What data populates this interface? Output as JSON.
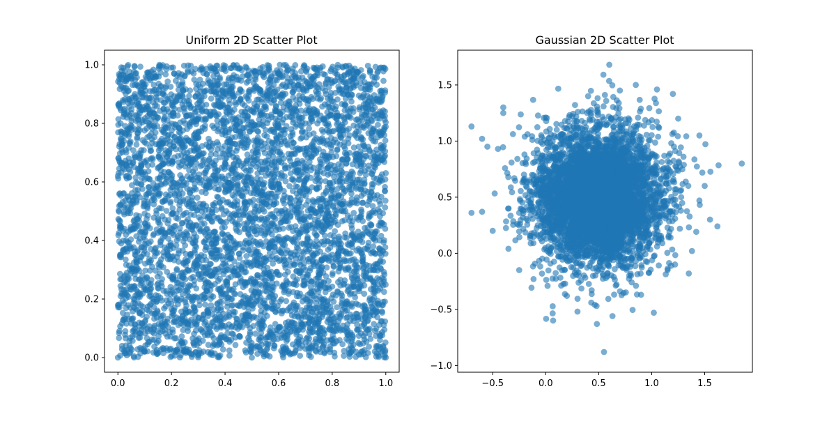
{
  "chart_data": [
    {
      "type": "scatter",
      "title": "Uniform 2D Scatter Plot",
      "xlabel": "",
      "ylabel": "",
      "xlim": [
        -0.05,
        1.05
      ],
      "ylim": [
        -0.05,
        1.05
      ],
      "xticks": [
        0.0,
        0.2,
        0.4,
        0.6,
        0.8,
        1.0
      ],
      "xtick_labels": [
        "0.0",
        "0.2",
        "0.4",
        "0.6",
        "0.8",
        "1.0"
      ],
      "yticks": [
        0.0,
        0.2,
        0.4,
        0.6,
        0.8,
        1.0
      ],
      "ytick_labels": [
        "0.0",
        "0.2",
        "0.4",
        "0.6",
        "0.8",
        "1.0"
      ],
      "grid": false,
      "legend": "none",
      "distribution": {
        "kind": "uniform",
        "x_range": [
          0.0,
          1.0
        ],
        "y_range": [
          0.0,
          1.0
        ],
        "approx_points": 5000
      },
      "point_color": "#1f77b4",
      "point_alpha": 0.6,
      "points": [
        [
          0.02,
          0.99
        ],
        [
          0.05,
          0.96
        ],
        [
          0.12,
          0.91
        ],
        [
          0.21,
          0.97
        ],
        [
          0.35,
          0.98
        ],
        [
          0.48,
          0.99
        ],
        [
          0.6,
          0.97
        ],
        [
          0.73,
          0.99
        ],
        [
          0.88,
          0.97
        ],
        [
          0.99,
          0.99
        ],
        [
          0.01,
          0.8
        ],
        [
          0.15,
          0.82
        ],
        [
          0.33,
          0.84
        ],
        [
          0.52,
          0.86
        ],
        [
          0.7,
          0.8
        ],
        [
          0.92,
          0.83
        ],
        [
          0.0,
          0.62
        ],
        [
          0.18,
          0.6
        ],
        [
          0.4,
          0.61
        ],
        [
          0.61,
          0.63
        ],
        [
          0.8,
          0.58
        ],
        [
          1.0,
          0.63
        ],
        [
          0.03,
          0.42
        ],
        [
          0.22,
          0.4
        ],
        [
          0.44,
          0.44
        ],
        [
          0.63,
          0.41
        ],
        [
          0.82,
          0.39
        ],
        [
          0.98,
          0.45
        ],
        [
          0.01,
          0.21
        ],
        [
          0.2,
          0.23
        ],
        [
          0.38,
          0.19
        ],
        [
          0.57,
          0.22
        ],
        [
          0.77,
          0.2
        ],
        [
          0.99,
          0.19
        ],
        [
          0.0,
          0.0
        ],
        [
          0.1,
          0.02
        ],
        [
          0.3,
          0.01
        ],
        [
          0.5,
          0.0
        ],
        [
          0.7,
          0.03
        ],
        [
          0.9,
          0.01
        ],
        [
          1.0,
          0.0
        ]
      ]
    },
    {
      "type": "scatter",
      "title": "Gaussian 2D Scatter Plot",
      "xlabel": "",
      "ylabel": "",
      "xlim": [
        -0.83,
        1.95
      ],
      "ylim": [
        -1.06,
        1.81
      ],
      "xticks": [
        -0.5,
        0.0,
        0.5,
        1.0,
        1.5
      ],
      "xtick_labels": [
        "−0.5",
        "0.0",
        "0.5",
        "1.0",
        "1.5"
      ],
      "yticks": [
        -1.0,
        -0.5,
        0.0,
        0.5,
        1.0,
        1.5
      ],
      "ytick_labels": [
        "−1.0",
        "−0.5",
        "0.0",
        "0.5",
        "1.0",
        "1.5"
      ],
      "grid": false,
      "legend": "none",
      "distribution": {
        "kind": "gaussian",
        "mean": [
          0.5,
          0.5
        ],
        "std": [
          0.3,
          0.3
        ],
        "approx_points": 5000
      },
      "point_color": "#1f77b4",
      "point_alpha": 0.6,
      "points": [
        [
          1.85,
          0.8
        ],
        [
          0.6,
          1.68
        ],
        [
          0.55,
          -0.88
        ],
        [
          -0.7,
          1.13
        ],
        [
          -0.7,
          0.36
        ],
        [
          1.62,
          0.24
        ],
        [
          0.07,
          -0.6
        ],
        [
          1.02,
          -0.53
        ],
        [
          0.63,
          -0.56
        ],
        [
          0.85,
          1.5
        ],
        [
          1.05,
          1.46
        ],
        [
          1.2,
          1.42
        ],
        [
          1.45,
          1.05
        ],
        [
          -0.4,
          1.3
        ],
        [
          -0.4,
          1.25
        ],
        [
          -0.55,
          0.95
        ],
        [
          -0.6,
          1.02
        ],
        [
          -0.45,
          0.93
        ],
        [
          -0.5,
          0.2
        ],
        [
          -0.6,
          0.37
        ],
        [
          -0.35,
          0.4
        ],
        [
          1.5,
          0.6
        ],
        [
          1.45,
          0.47
        ],
        [
          1.38,
          0.02
        ],
        [
          1.35,
          -0.18
        ],
        [
          1.3,
          0.86
        ],
        [
          1.25,
          1.2
        ],
        [
          0.7,
          1.45
        ],
        [
          0.0,
          1.21
        ],
        [
          0.4,
          1.4
        ],
        [
          0.3,
          -0.52
        ],
        [
          0.43,
          -0.44
        ],
        [
          0.48,
          -0.47
        ],
        [
          0.9,
          -0.37
        ],
        [
          -0.25,
          -0.15
        ],
        [
          0.2,
          -0.38
        ],
        [
          1.15,
          -0.15
        ],
        [
          1.22,
          -0.1
        ],
        [
          1.55,
          0.3
        ],
        [
          -0.2,
          0.88
        ]
      ]
    }
  ]
}
